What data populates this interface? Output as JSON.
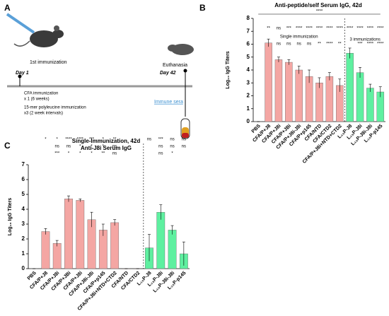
{
  "schematic": {
    "panel": "A",
    "first_immunization": "1st immunization",
    "day1": "Day 1",
    "day42": "Day 42",
    "euthanasia": "Euthanasia",
    "cfa": "CFA immunization",
    "cfa_times": "x 1 (6 weeks)",
    "poly": "15-mer polyleucine immunization",
    "poly_times": "x3 (2 week intervals)",
    "sera": "Immune sera"
  },
  "chart_data": [
    {
      "type": "bar",
      "panel": "B",
      "title": "Anti-peptide/self Serum IgG, 42d",
      "y_label": "Log₁₀ IgG Titers",
      "categories": [
        "PBS",
        "CFA/P+J8",
        "CFA/P+J8i",
        "CFA/P+JBi",
        "CFA/P+J8i-J8i",
        "CFA/P+p145",
        "CFA/NTD",
        "CFA/CTD2",
        "CFA/P+J8i+NTD+CTD2",
        "L₁₅P-J8",
        "L₁₅P-J8i",
        "L₁₅P-J8i-J8i",
        "L₁₅P-p145"
      ],
      "values": [
        0,
        6.1,
        4.8,
        4.6,
        4.0,
        3.5,
        3.0,
        3.5,
        2.8,
        5.3,
        3.8,
        2.6,
        2.3
      ],
      "errors": [
        0,
        0.3,
        0.2,
        0.2,
        0.3,
        0.5,
        0.4,
        0.3,
        0.5,
        0.4,
        0.4,
        0.3,
        0.4
      ],
      "colors": [
        "#ffffff",
        "#f4a6a3",
        "#f4a6a3",
        "#f4a6a3",
        "#f4a6a3",
        "#f4a6a3",
        "#f4a6a3",
        "#f4a6a3",
        "#f4a6a3",
        "#5ef0a0",
        "#5ef0a0",
        "#5ef0a0",
        "#5ef0a0"
      ],
      "ylim": [
        0,
        8
      ],
      "yticks": [
        0,
        1,
        2,
        3,
        4,
        5,
        6,
        7,
        8
      ],
      "top_significance": "****",
      "significance": [
        null,
        "**",
        "ns",
        "***",
        "****",
        "****",
        "****",
        "****",
        "****",
        "****",
        "****",
        "****",
        "****"
      ],
      "significance2": [
        null,
        null,
        "ns",
        "ns",
        "ns",
        "ns",
        "**",
        "****",
        "**",
        null,
        "***",
        "****",
        "****"
      ],
      "group_labels": [
        "Single immunization",
        "3 immunizations"
      ]
    },
    {
      "type": "bar",
      "panel": "C",
      "title": "Single-Immunization, 42d",
      "subtitle": "Anti-J8i Serum IgG",
      "y_label": "Log₁₀ IgG Titers",
      "categories": [
        "PBS",
        "CFA/P+J8",
        "CFA/P+J8i",
        "CFA/P+JBi",
        "CFA/P+J8i",
        "CFA/P+J8i-J8i",
        "CFA/P+p145",
        "CFA/P+J8i+NTD+CTD2",
        "CFA/NTD",
        "CFA/CTD2",
        "L₁₅P-J8",
        "L₁₅P-J8i",
        "L₁₅P-J8i-J8i",
        "L₁₅P-p145"
      ],
      "values": [
        0,
        2.5,
        1.7,
        4.7,
        4.6,
        3.3,
        2.6,
        3.1,
        0,
        0,
        1.4,
        3.8,
        2.6,
        1.0
      ],
      "errors": [
        0,
        0.2,
        0.2,
        0.2,
        0.1,
        0.5,
        0.4,
        0.2,
        0,
        0,
        0.9,
        0.5,
        0.3,
        0.8
      ],
      "colors": [
        "#ffffff",
        "#f4a6a3",
        "#f4a6a3",
        "#f4a6a3",
        "#f4a6a3",
        "#f4a6a3",
        "#f4a6a3",
        "#f4a6a3",
        "#f4a6a3",
        "#f4a6a3",
        "#5ef0a0",
        "#5ef0a0",
        "#5ef0a0",
        "#5ef0a0"
      ],
      "ylim": [
        0,
        7
      ],
      "yticks": [
        0,
        1,
        2,
        3,
        4,
        5,
        6,
        7
      ],
      "significance": [
        null,
        "*",
        "*",
        "****",
        "****",
        "***",
        "*",
        "**",
        null,
        null,
        "ns",
        "***",
        "ns",
        "ns"
      ],
      "significance2": [
        null,
        null,
        "ns",
        "ns",
        "*",
        "*",
        "*",
        "ns",
        null,
        null,
        null,
        "ns",
        "ns",
        "ns"
      ],
      "significance3": [
        null,
        null,
        "***",
        "*",
        "*",
        "*",
        "**",
        "ns",
        null,
        null,
        null,
        "ns",
        "*",
        null
      ]
    }
  ]
}
